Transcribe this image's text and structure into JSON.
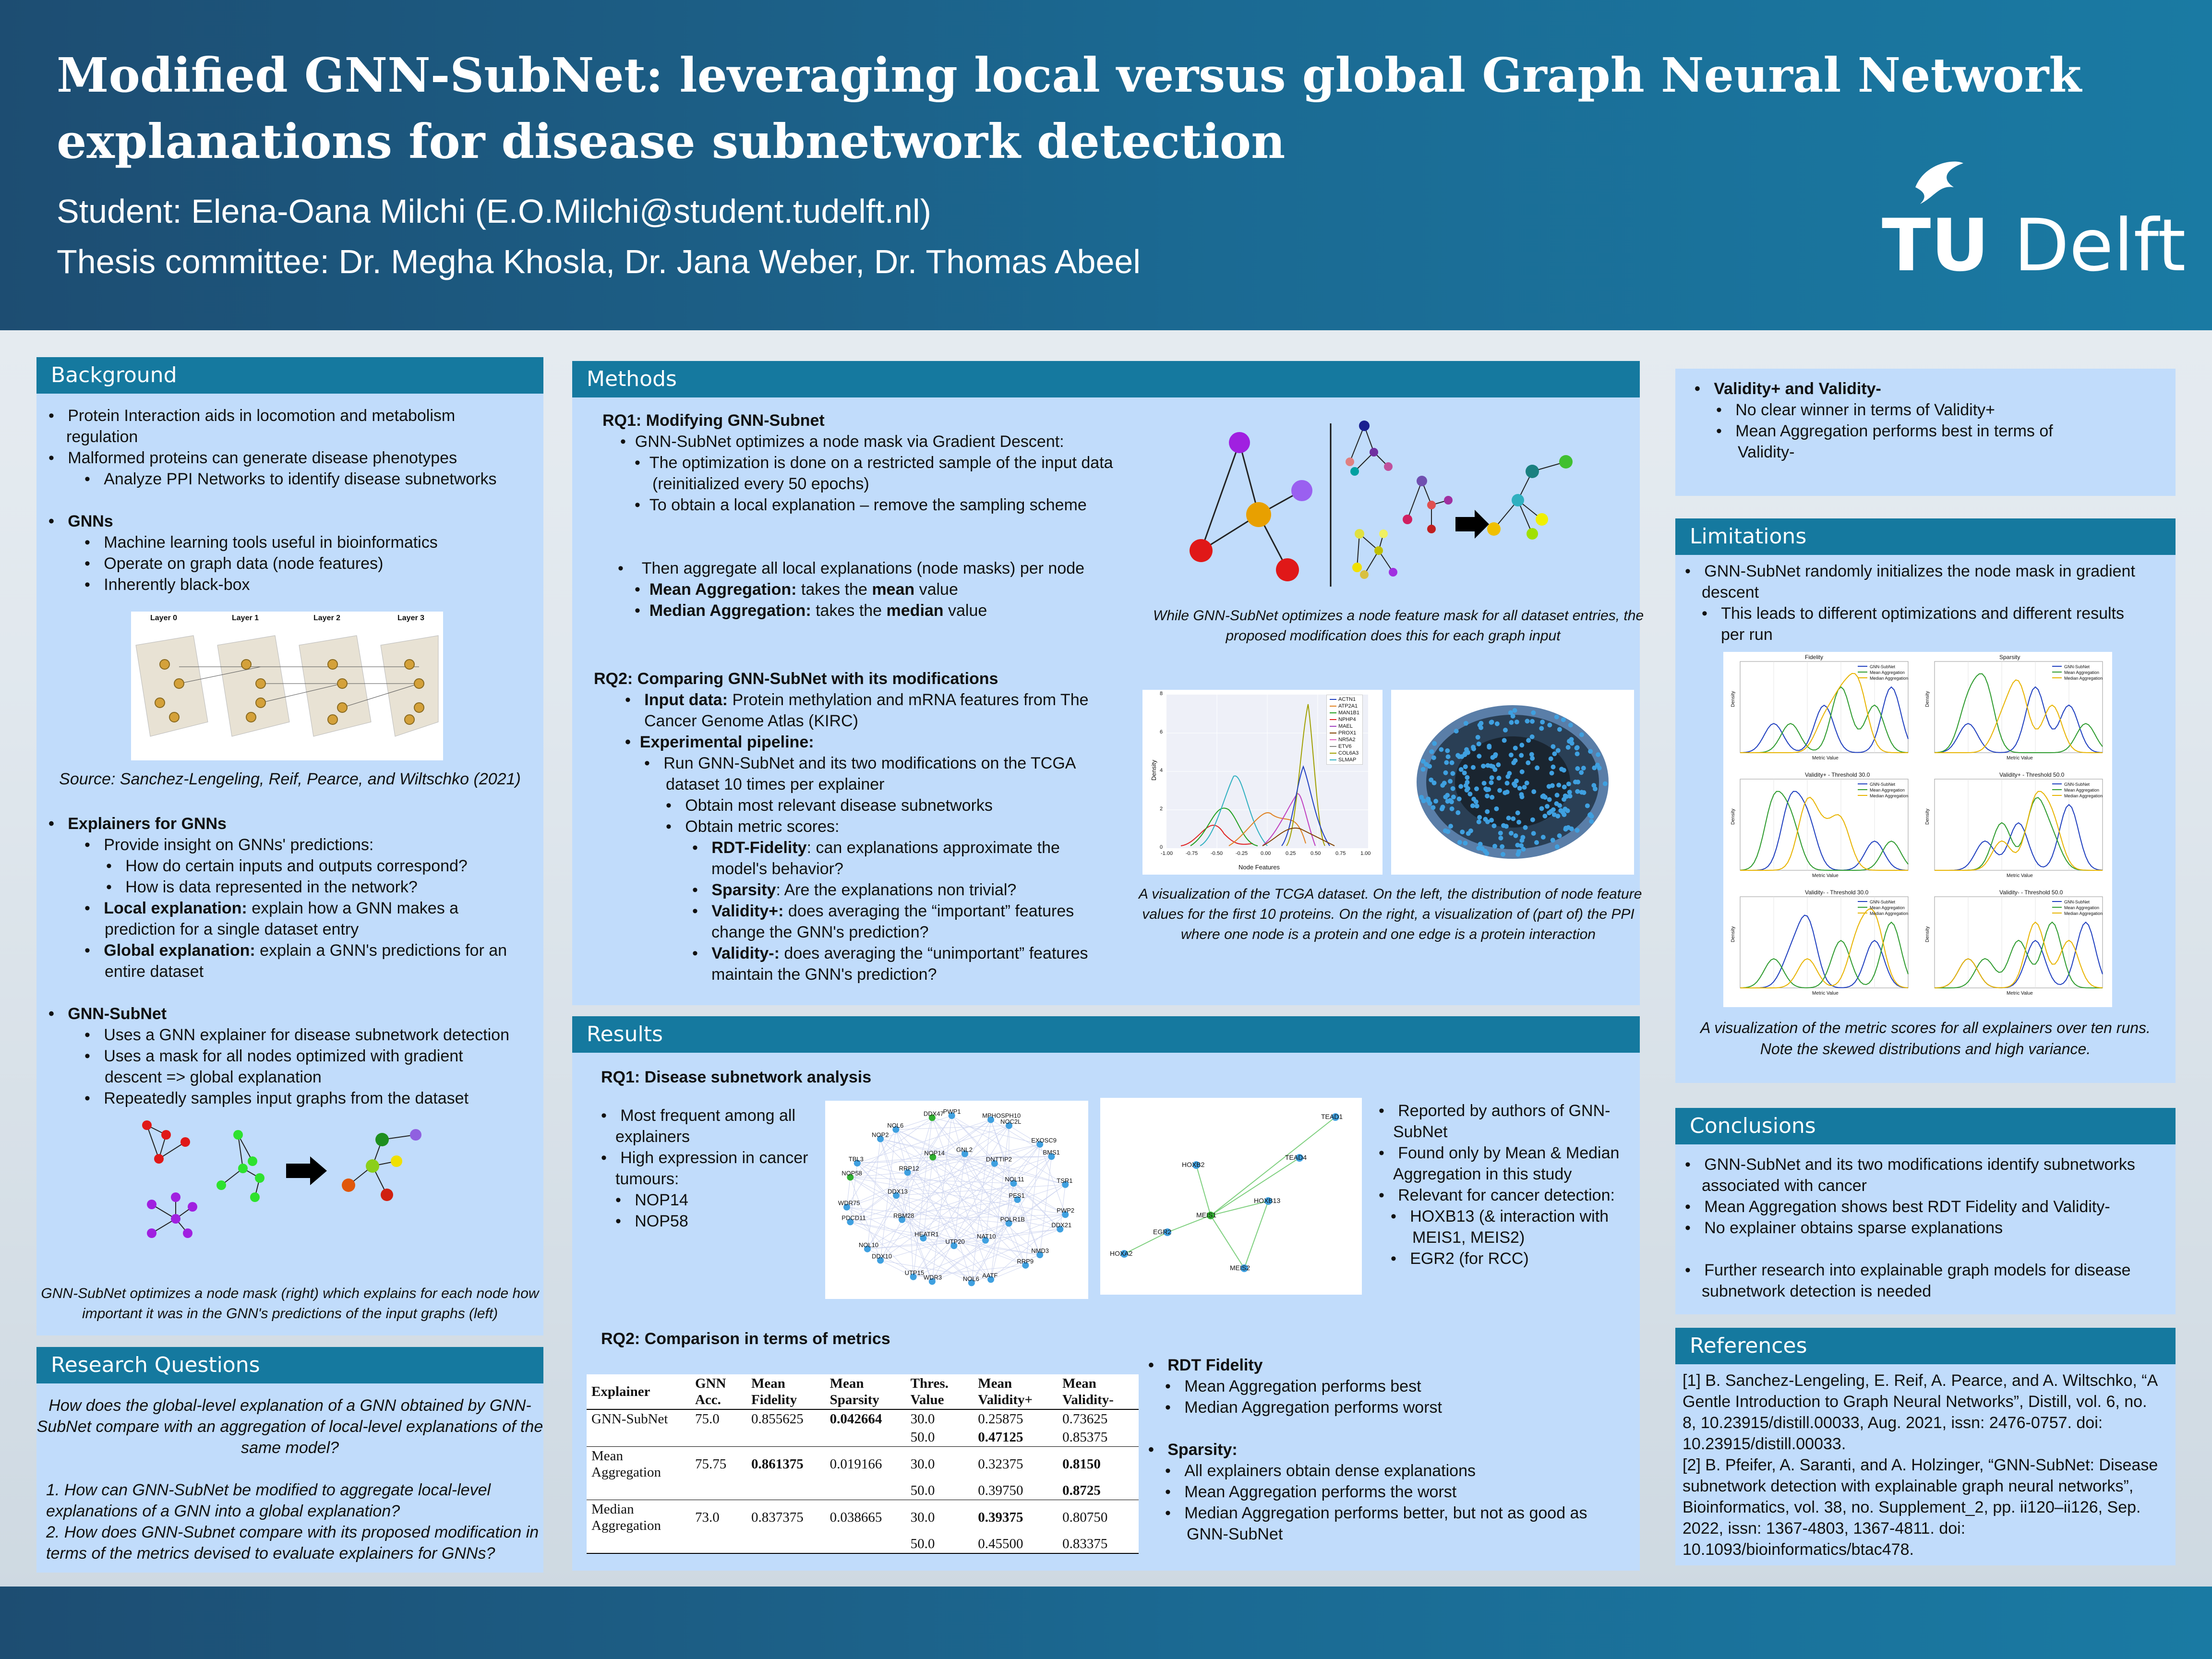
{
  "header": {
    "title_line1": "Modified GNN-SubNet: leveraging local versus global Graph Neural Network",
    "title_line2": "explanations for disease subnetwork detection",
    "student": "Student: Elena-Oana Milchi (E.O.Milchi@student.tudelft.nl)",
    "committee": "Thesis committee: Dr. Megha Khosla, Dr. Jana Weber, Dr. Thomas Abeel",
    "logo_text_tu": "TU",
    "logo_text_delft": "Delft"
  },
  "background": {
    "heading": "Background",
    "b1": "Protein Interaction aids in locomotion and metabolism",
    "b1b": "regulation",
    "b2": "Malformed proteins can generate disease phenotypes",
    "b3": "Analyze PPI Networks to identify disease subnetworks",
    "gnns": "GNNs",
    "g1": "Machine learning tools useful in bioinformatics",
    "g2": "Operate on graph data (node features)",
    "g3": "Inherently black-box",
    "layers": [
      "Layer 0",
      "Layer 1",
      "Layer 2",
      "Layer 3"
    ],
    "source": "Source: Sanchez-Lengeling,  Reif, Pearce, and Wiltschko (2021)",
    "explainers": "Explainers for GNNs",
    "e1": "Provide insight on GNNs' predictions:",
    "e1a": "How do certain inputs and outputs correspond?",
    "e1b": "How is data represented in the network?",
    "e2_bold": "Local explanation:",
    "e2": " explain how a GNN makes a",
    "e2b": "prediction for a single dataset entry",
    "e3_bold": "Global explanation:",
    "e3": " explain a GNN's predictions for an",
    "e3b": "entire dataset",
    "subnet": "GNN-SubNet",
    "s1": "Uses a GNN explainer for disease subnetwork detection",
    "s2": "Uses a mask for all nodes optimized with gradient",
    "s2b": "descent => global explanation",
    "s3": "Repeatedly samples input graphs from the dataset",
    "cap1": "GNN-SubNet  optimizes a node mask (right) which explains for each node how",
    "cap2": "important it was in the GNN's predictions of the input graphs (left)"
  },
  "rq": {
    "heading": "Research Questions",
    "q0a": "How does the global-level explanation of a GNN obtained by GNN-",
    "q0b": "SubNet compare with an aggregation of local-level explanations of the",
    "q0c": "same model?",
    "q1a": "1. How can GNN-SubNet  be modified to aggregate local-level",
    "q1b": "explanations of a GNN into a global explanation?",
    "q2a": "2. How does GNN-Subnet  compare with its proposed modification in",
    "q2b": "terms of the metrics devised to evaluate explainers for GNNs?"
  },
  "methods": {
    "heading": "Methods",
    "rq1": "RQ1: Modifying GNN-Subnet",
    "m1": "GNN-SubNet optimizes a node mask via Gradient Descent:",
    "m1a": "The optimization is done on a restricted sample of the input data",
    "m1b": "(reinitialized every 50 epochs)",
    "m1c": "To obtain a local explanation – remove the sampling scheme",
    "m2": "Then aggregate all local explanations (node masks) per node",
    "m2a_b": "Mean Aggregation:",
    "m2a": " takes the ",
    "m2a_mean": "mean",
    "m2a_end": " value",
    "m2b_b": "Median Aggregation:",
    "m2b": " takes the ",
    "m2b_med": "median",
    "m2b_end": " value",
    "cap_rq1a": "While GNN-SubNet optimizes a node feature mask for all dataset entries, the",
    "cap_rq1b": "proposed modification does this for each graph input",
    "rq2": "RQ2: Comparing GNN-SubNet with its modifications",
    "r1_b": "Input data:",
    "r1": " Protein methylation and mRNA features from The",
    "r1b": "Cancer Genome Atlas (KIRC)",
    "r2": "Experimental pipeline:",
    "r2a": "Run GNN-SubNet  and  its  two  modifications  on  the  TCGA",
    "r2b": "dataset 10 times per explainer",
    "r2c": "Obtain most relevant disease subnetworks",
    "r2d": "Obtain metric scores:",
    "r3_b": "RDT-Fidelity",
    "r3": ":  can  explanations  approximate  the",
    "r3b": "model's behavior?",
    "r4_b": "Sparsity",
    "r4": ": Are the explanations non trivial?",
    "r5_b": "Validity+:",
    "r5": "  does  averaging  the  “important”  features",
    "r5b": "change the GNN's prediction?",
    "r6_b": "Validity-:",
    "r6": "  does  averaging  the  “unimportant”  features",
    "r6b": "maintain the GNN's prediction?",
    "legend": [
      "ACTN1",
      "ATP2A1",
      "MAN1B1",
      "NPHP4",
      "MAEL",
      "PROX1",
      "NR5A2",
      "ETV6",
      "COL6A3",
      "SLMAP"
    ],
    "xlabel": "Node Features",
    "ylabel": "Density",
    "xticks": [
      "-1.00",
      "-0.75",
      "-0.50",
      "-0.25",
      "0.00",
      "0.25",
      "0.50",
      "0.75",
      "1.00"
    ],
    "yticks": [
      "0",
      "2",
      "4",
      "6",
      "8"
    ],
    "cap_rq2a": "A visualization of the TCGA dataset. On the left, the distribution of node feature",
    "cap_rq2b": "values for the first 10 proteins. On the right, a visualization of (part of) the PPI",
    "cap_rq2c": "where one node is a protein and one edge is a protein interaction"
  },
  "results": {
    "heading": "Results",
    "rq1": "RQ1: Disease subnetwork analysis",
    "l1": "Most frequent among all",
    "l1b": "explainers",
    "l2": "High expression in cancer",
    "l2b": "tumours:",
    "l2c": "NOP14",
    "l2d": "NOP58",
    "net1_labels": [
      "PES1",
      "PWP2",
      "DDX21",
      "POLR1B",
      "NMD3",
      "RRP9",
      "NAT10",
      "AATF",
      "NOL6",
      "UTP20",
      "WDR3",
      "UTP15",
      "HEATR1",
      "DDX10",
      "NOL10",
      "RBM28",
      "PDCD11",
      "WDR75",
      "DDX13",
      "NOP58",
      "TBL3",
      "RRP12",
      "NOP2",
      "NOL6",
      "NOP14",
      "DDX47",
      "PWP1",
      "GNL2",
      "MPHOSPH10",
      "NOC2L",
      "DNTTIP2",
      "EXOSC9",
      "BMS1",
      "NOL11",
      "TSR1"
    ],
    "net2_labels": [
      "TEAD1",
      "HOXB2",
      "TEAD4",
      "HOXB13",
      "MEIS1",
      "EGR2",
      "HOXA2",
      "MEIS2"
    ],
    "r1": "Reported by authors of GNN-",
    "r1b": "SubNet",
    "r2": "Found only by Mean & Median",
    "r2b": "Aggregation in this study",
    "r3": "Relevant for cancer detection:",
    "r3a": "HOXB13 (& interaction with",
    "r3b": "MEIS1, MEIS2)",
    "r3c": "EGR2 (for RCC)",
    "rq2": "RQ2: Comparison in terms of metrics",
    "table_head": [
      "Explainer",
      "GNN Acc.",
      "Mean Fidelity",
      "Mean Sparsity",
      "Thres. Value",
      "Mean Validity+",
      "Mean Validity-"
    ],
    "rows": [
      [
        "GNN-SubNet",
        "75.0",
        "0.855625",
        "0.042664",
        "30.0",
        "0.25875",
        "0.73625"
      ],
      [
        "",
        "",
        "",
        "",
        "50.0",
        "0.47125",
        "0.85375"
      ],
      [
        "Mean Aggregation",
        "75.75",
        "0.861375",
        "0.019166",
        "30.0",
        "0.32375",
        "0.8150"
      ],
      [
        "",
        "",
        "",
        "",
        "50.0",
        "0.39750",
        "0.8725"
      ],
      [
        "Median Aggregation",
        "73.0",
        "0.837375",
        "0.038665",
        "30.0",
        "0.39375",
        "0.80750"
      ],
      [
        "",
        "",
        "",
        "",
        "50.0",
        "0.45500",
        "0.83375"
      ]
    ],
    "rdt": "RDT Fidelity",
    "rdt1": "Mean Aggregation performs best",
    "rdt2": "Median Aggregation performs worst",
    "sp": "Sparsity:",
    "sp1": "All explainers obtain dense explanations",
    "sp2": "Mean Aggregation performs the worst",
    "sp3": "Median Aggregation performs better, but not as good as",
    "sp3b": "GNN-SubNet"
  },
  "validity": {
    "v": "Validity+ and Validity-",
    "v1": "No clear winner in terms of Validity+",
    "v2": "Mean Aggregation performs best in terms of",
    "v2b": "Validity-"
  },
  "limitations": {
    "heading": "Limitations",
    "l1": "GNN-SubNet randomly initializes the node mask in gradient",
    "l1b": "descent",
    "l2": "This leads to different optimizations and different results",
    "l2b": "per run",
    "chart_titles": [
      "Fidelity",
      "Sparsity",
      "Validity+ - Threshold 30.0",
      "Validity+ - Threshold 50.0",
      "Validity- - Threshold 30.0",
      "Validity- - Threshold 50.0"
    ],
    "legend": [
      "GNN-SubNet",
      "Mean Aggregation",
      "Median Aggregation"
    ],
    "xlabel": "Metric Value",
    "ylabel": "Density",
    "cap1": "A visualization of the metric scores for all explainers over ten runs.",
    "cap2": "Note the skewed distributions and high variance."
  },
  "conclusions": {
    "heading": "Conclusions",
    "c1": "GNN-SubNet and its two modifications identify subnetworks",
    "c1b": "associated with cancer",
    "c2": "Mean Aggregation shows best RDT Fidelity and Validity-",
    "c3": "No explainer obtains sparse explanations",
    "c4": "Further research into explainable graph models for disease",
    "c4b": "subnetwork detection is needed"
  },
  "references": {
    "heading": "References",
    "r1": "[1] B. Sanchez-Lengeling, E. Reif, A. Pearce, and A. Wiltschko, “A",
    "r1b": "Gentle Introduction to Graph Neural Networks”, Distill, vol. 6, no.",
    "r1c": "8, 10.23915/distill.00033, Aug. 2021, issn: 2476-0757. doi:",
    "r1d": "10.23915/distill.00033.",
    "r2": "[2] B. Pfeifer, A. Saranti, and A. Holzinger, “GNN-SubNet: Disease",
    "r2b": "subnetwork detection with explainable graph neural networks”,",
    "r2c": "Bioinformatics, vol. 38, no. Supplement_2, pp. ii120–ii126, Sep.",
    "r2d": "2022, issn: 1367-4803, 1367-4811. doi:",
    "r2e": "10.1093/bioinformatics/btac478."
  },
  "colors": {
    "header": "#1b6a93",
    "panel": "#c1dcfb",
    "panel_heading": "#15799f",
    "gnn_subnet": "#1f3fbf",
    "mean_agg": "#2e9b2e",
    "median_agg": "#e8b400"
  }
}
